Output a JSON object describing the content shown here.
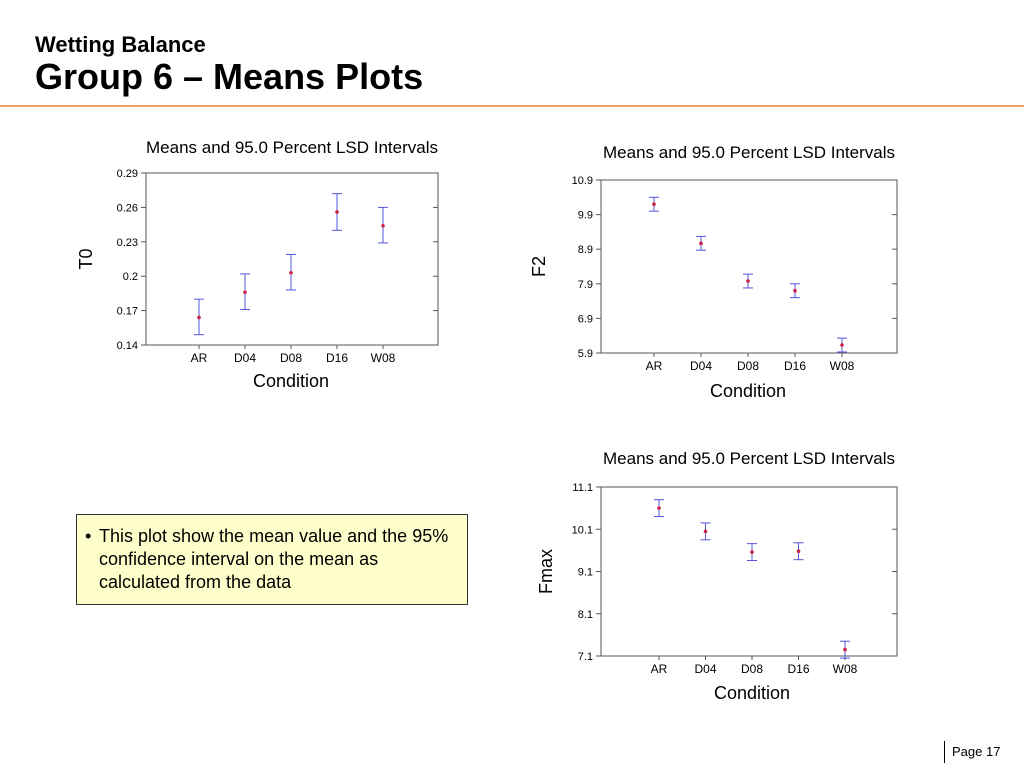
{
  "header": {
    "subtitle": "Wetting Balance",
    "title": "Group 6 – Means Plots"
  },
  "note": {
    "bullet": "•",
    "text": "This plot show the mean value and the 95% confidence interval on the mean as calculated from the data"
  },
  "footer": {
    "page": "Page 17"
  },
  "colors": {
    "accent_rule": "#f0a060",
    "interval": "#5555dd",
    "mean_marker": "#cc2244",
    "note_bg": "#ffffcc"
  },
  "chart_data": [
    {
      "id": "t0",
      "type": "scatter",
      "title": "Means and 95.0 Percent LSD Intervals",
      "xlabel": "Condition",
      "ylabel": "T0",
      "categories": [
        "AR",
        "D04",
        "D08",
        "D16",
        "W08"
      ],
      "means": [
        0.164,
        0.186,
        0.203,
        0.256,
        0.244
      ],
      "lower": [
        0.149,
        0.171,
        0.188,
        0.24,
        0.229
      ],
      "upper": [
        0.18,
        0.202,
        0.219,
        0.272,
        0.26
      ],
      "yticks": [
        "0.14",
        "0.17",
        "0.2",
        "0.23",
        "0.26",
        "0.29"
      ],
      "ylim": [
        0.14,
        0.29
      ]
    },
    {
      "id": "f2",
      "type": "scatter",
      "title": "Means and 95.0 Percent LSD Intervals",
      "xlabel": "Condition",
      "ylabel": "F2",
      "categories": [
        "AR",
        "D04",
        "D08",
        "D16",
        "W08"
      ],
      "means": [
        10.2,
        9.07,
        7.98,
        7.7,
        6.13
      ],
      "lower": [
        10.0,
        8.87,
        7.78,
        7.5,
        5.93
      ],
      "upper": [
        10.4,
        9.27,
        8.18,
        7.9,
        6.33
      ],
      "yticks": [
        "5.9",
        "6.9",
        "7.9",
        "8.9",
        "9.9",
        "10.9"
      ],
      "ylim": [
        5.9,
        10.9
      ]
    },
    {
      "id": "fmax",
      "type": "scatter",
      "title": "Means and 95.0 Percent LSD Intervals",
      "xlabel": "Condition",
      "ylabel": "Fmax",
      "categories": [
        "AR",
        "D04",
        "D08",
        "D16",
        "W08"
      ],
      "means": [
        10.6,
        10.05,
        9.56,
        9.58,
        7.25
      ],
      "lower": [
        10.4,
        9.85,
        9.36,
        9.38,
        7.05
      ],
      "upper": [
        10.8,
        10.25,
        9.76,
        9.78,
        7.45
      ],
      "yticks": [
        "7.1",
        "8.1",
        "9.1",
        "10.1",
        "11.1"
      ],
      "ylim": [
        7.1,
        11.1
      ]
    }
  ]
}
